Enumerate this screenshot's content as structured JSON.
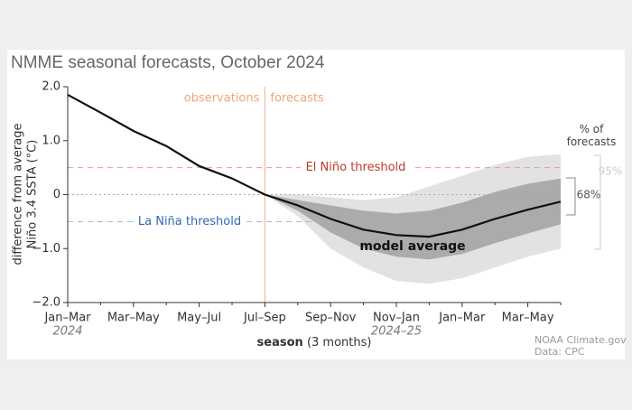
{
  "chart_data": {
    "type": "line",
    "title": "NMME seasonal forecasts, October 2024",
    "y_label": [
      "difference from average",
      "Niño 3.4 SSTA (°C)"
    ],
    "x_label": "season",
    "x_label_note": "(3 months)",
    "categories": [
      "Jan–Mar",
      null,
      "Mar–May",
      null,
      "May–Jul",
      null,
      "Jul–Sep",
      null,
      "Sep–Nov",
      null,
      "Nov–Jan",
      null,
      "Jan–Mar",
      null,
      "Mar–May",
      null
    ],
    "x_sublabels": [
      "2024",
      null,
      null,
      null,
      null,
      null,
      null,
      null,
      null,
      null,
      "2024–25",
      null,
      null,
      null,
      null,
      null
    ],
    "series": [
      {
        "name": "model average",
        "color": "#111111",
        "values": [
          1.85,
          1.52,
          1.18,
          0.9,
          0.53,
          0.3,
          0.0,
          -0.2,
          -0.45,
          -0.65,
          -0.75,
          -0.78,
          -0.65,
          -0.45,
          -0.28,
          -0.13
        ]
      }
    ],
    "bands": [
      {
        "name": "95%",
        "color": "#e2e2e2",
        "upper": [
          null,
          null,
          null,
          null,
          null,
          null,
          0.0,
          0.0,
          -0.05,
          -0.1,
          -0.05,
          0.15,
          0.35,
          0.55,
          0.7,
          0.75
        ],
        "lower": [
          null,
          null,
          null,
          null,
          null,
          null,
          0.0,
          -0.4,
          -1.0,
          -1.35,
          -1.6,
          -1.65,
          -1.55,
          -1.35,
          -1.15,
          -1.0
        ]
      },
      {
        "name": "68%",
        "color": "#ababab",
        "upper": [
          null,
          null,
          null,
          null,
          null,
          null,
          0.0,
          -0.1,
          -0.2,
          -0.3,
          -0.35,
          -0.3,
          -0.15,
          0.05,
          0.2,
          0.3
        ],
        "lower": [
          null,
          null,
          null,
          null,
          null,
          null,
          0.0,
          -0.3,
          -0.7,
          -1.0,
          -1.15,
          -1.2,
          -1.1,
          -0.9,
          -0.72,
          -0.55
        ]
      }
    ],
    "legend_title": "% of forecasts",
    "forecast_start_index": 6,
    "observations_label": "observations",
    "forecasts_label": "forecasts",
    "el_nino_threshold": 0.5,
    "el_nino_label": "El Niño threshold",
    "la_nina_threshold": -0.5,
    "la_nina_label": "La Niña threshold",
    "ylim": [
      -2.0,
      2.0
    ],
    "yticks": [
      {
        "value": 2.0,
        "label": "2.0"
      },
      {
        "value": 1.0,
        "label": "1.0"
      },
      0,
      {
        "value": -1.0,
        "label": "−1.0"
      },
      {
        "value": -2.0,
        "label": "−2.0"
      }
    ],
    "credits": [
      "NOAA Climate.gov",
      "Data: CPC"
    ]
  }
}
